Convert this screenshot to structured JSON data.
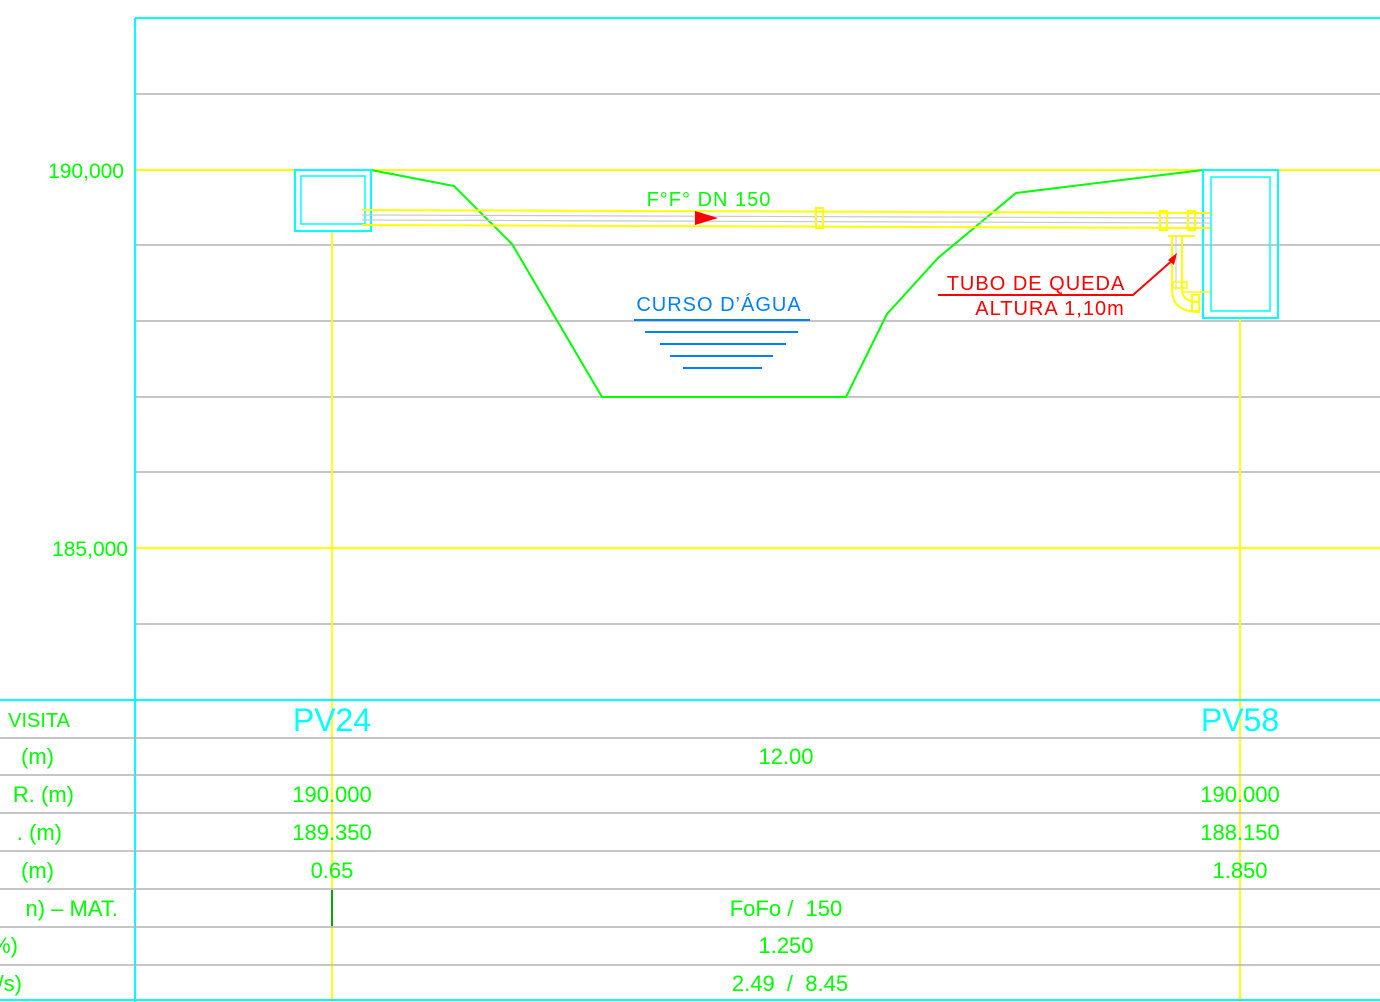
{
  "colors": {
    "grid": "#b4b4b4",
    "level": "#ffff00",
    "frame": "#00ffff",
    "terrain": "#00ff00",
    "pipe": "#ffff00",
    "water": "#0080ff",
    "annotation": "#ff0000",
    "text_green": "#00ff00",
    "text_cyan": "#00ffff"
  },
  "elevations": {
    "upper": "190,000",
    "lower": "185,000"
  },
  "pipe_label": "F°F° DN 150",
  "water_label": "CURSO D’ÁGUA",
  "drop_tube": {
    "line1": "TUBO DE QUEDA",
    "line2": "ALTURA 1,10m"
  },
  "table": {
    "row_labels": [
      "VISITA",
      "(m)",
      "R. (m)",
      ". (m)",
      "(m)",
      "n) – MAT.",
      "%)",
      "/s)"
    ],
    "manholes": [
      {
        "id": "PV24",
        "cota_terreno": "190.000",
        "cota_coletor": "189.350",
        "profundidade": "0.65"
      },
      {
        "id": "PV58",
        "cota_terreno": "190.000",
        "cota_coletor": "188.150",
        "profundidade": "1.850"
      }
    ],
    "segment": {
      "extensao": "12.00",
      "diametro_material": "FoFo /  150",
      "declividade": "1.250",
      "vazao": "2.49  /  8.45"
    }
  }
}
